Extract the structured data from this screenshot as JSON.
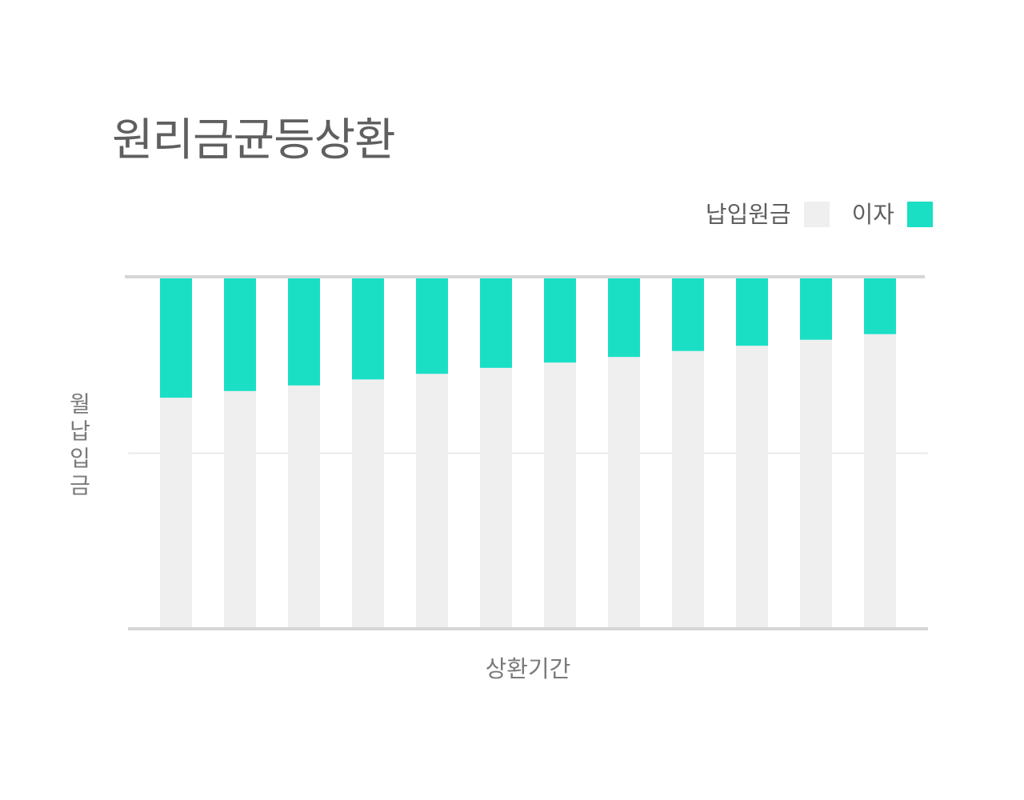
{
  "chart_data": {
    "type": "bar",
    "stacked": true,
    "title": "원리금균등상환",
    "xlabel": "상환기간",
    "ylabel": "월납입금",
    "categories": [
      "",
      "",
      "",
      "",
      "",
      "",
      "",
      "",
      "",
      "",
      "",
      ""
    ],
    "series": [
      {
        "name": "납입원금",
        "color": "#efefef",
        "values": [
          65.8,
          67.7,
          69.3,
          71.0,
          72.6,
          74.3,
          75.8,
          77.4,
          79.1,
          80.6,
          82.3,
          83.9
        ]
      },
      {
        "name": "이자",
        "color": "#1adfc5",
        "values": [
          34.2,
          32.3,
          30.7,
          29.0,
          27.4,
          25.7,
          24.2,
          22.6,
          20.9,
          19.4,
          17.7,
          16.1
        ]
      }
    ],
    "ylim": [
      0,
      100
    ],
    "grid": true,
    "legend": "top-right"
  }
}
